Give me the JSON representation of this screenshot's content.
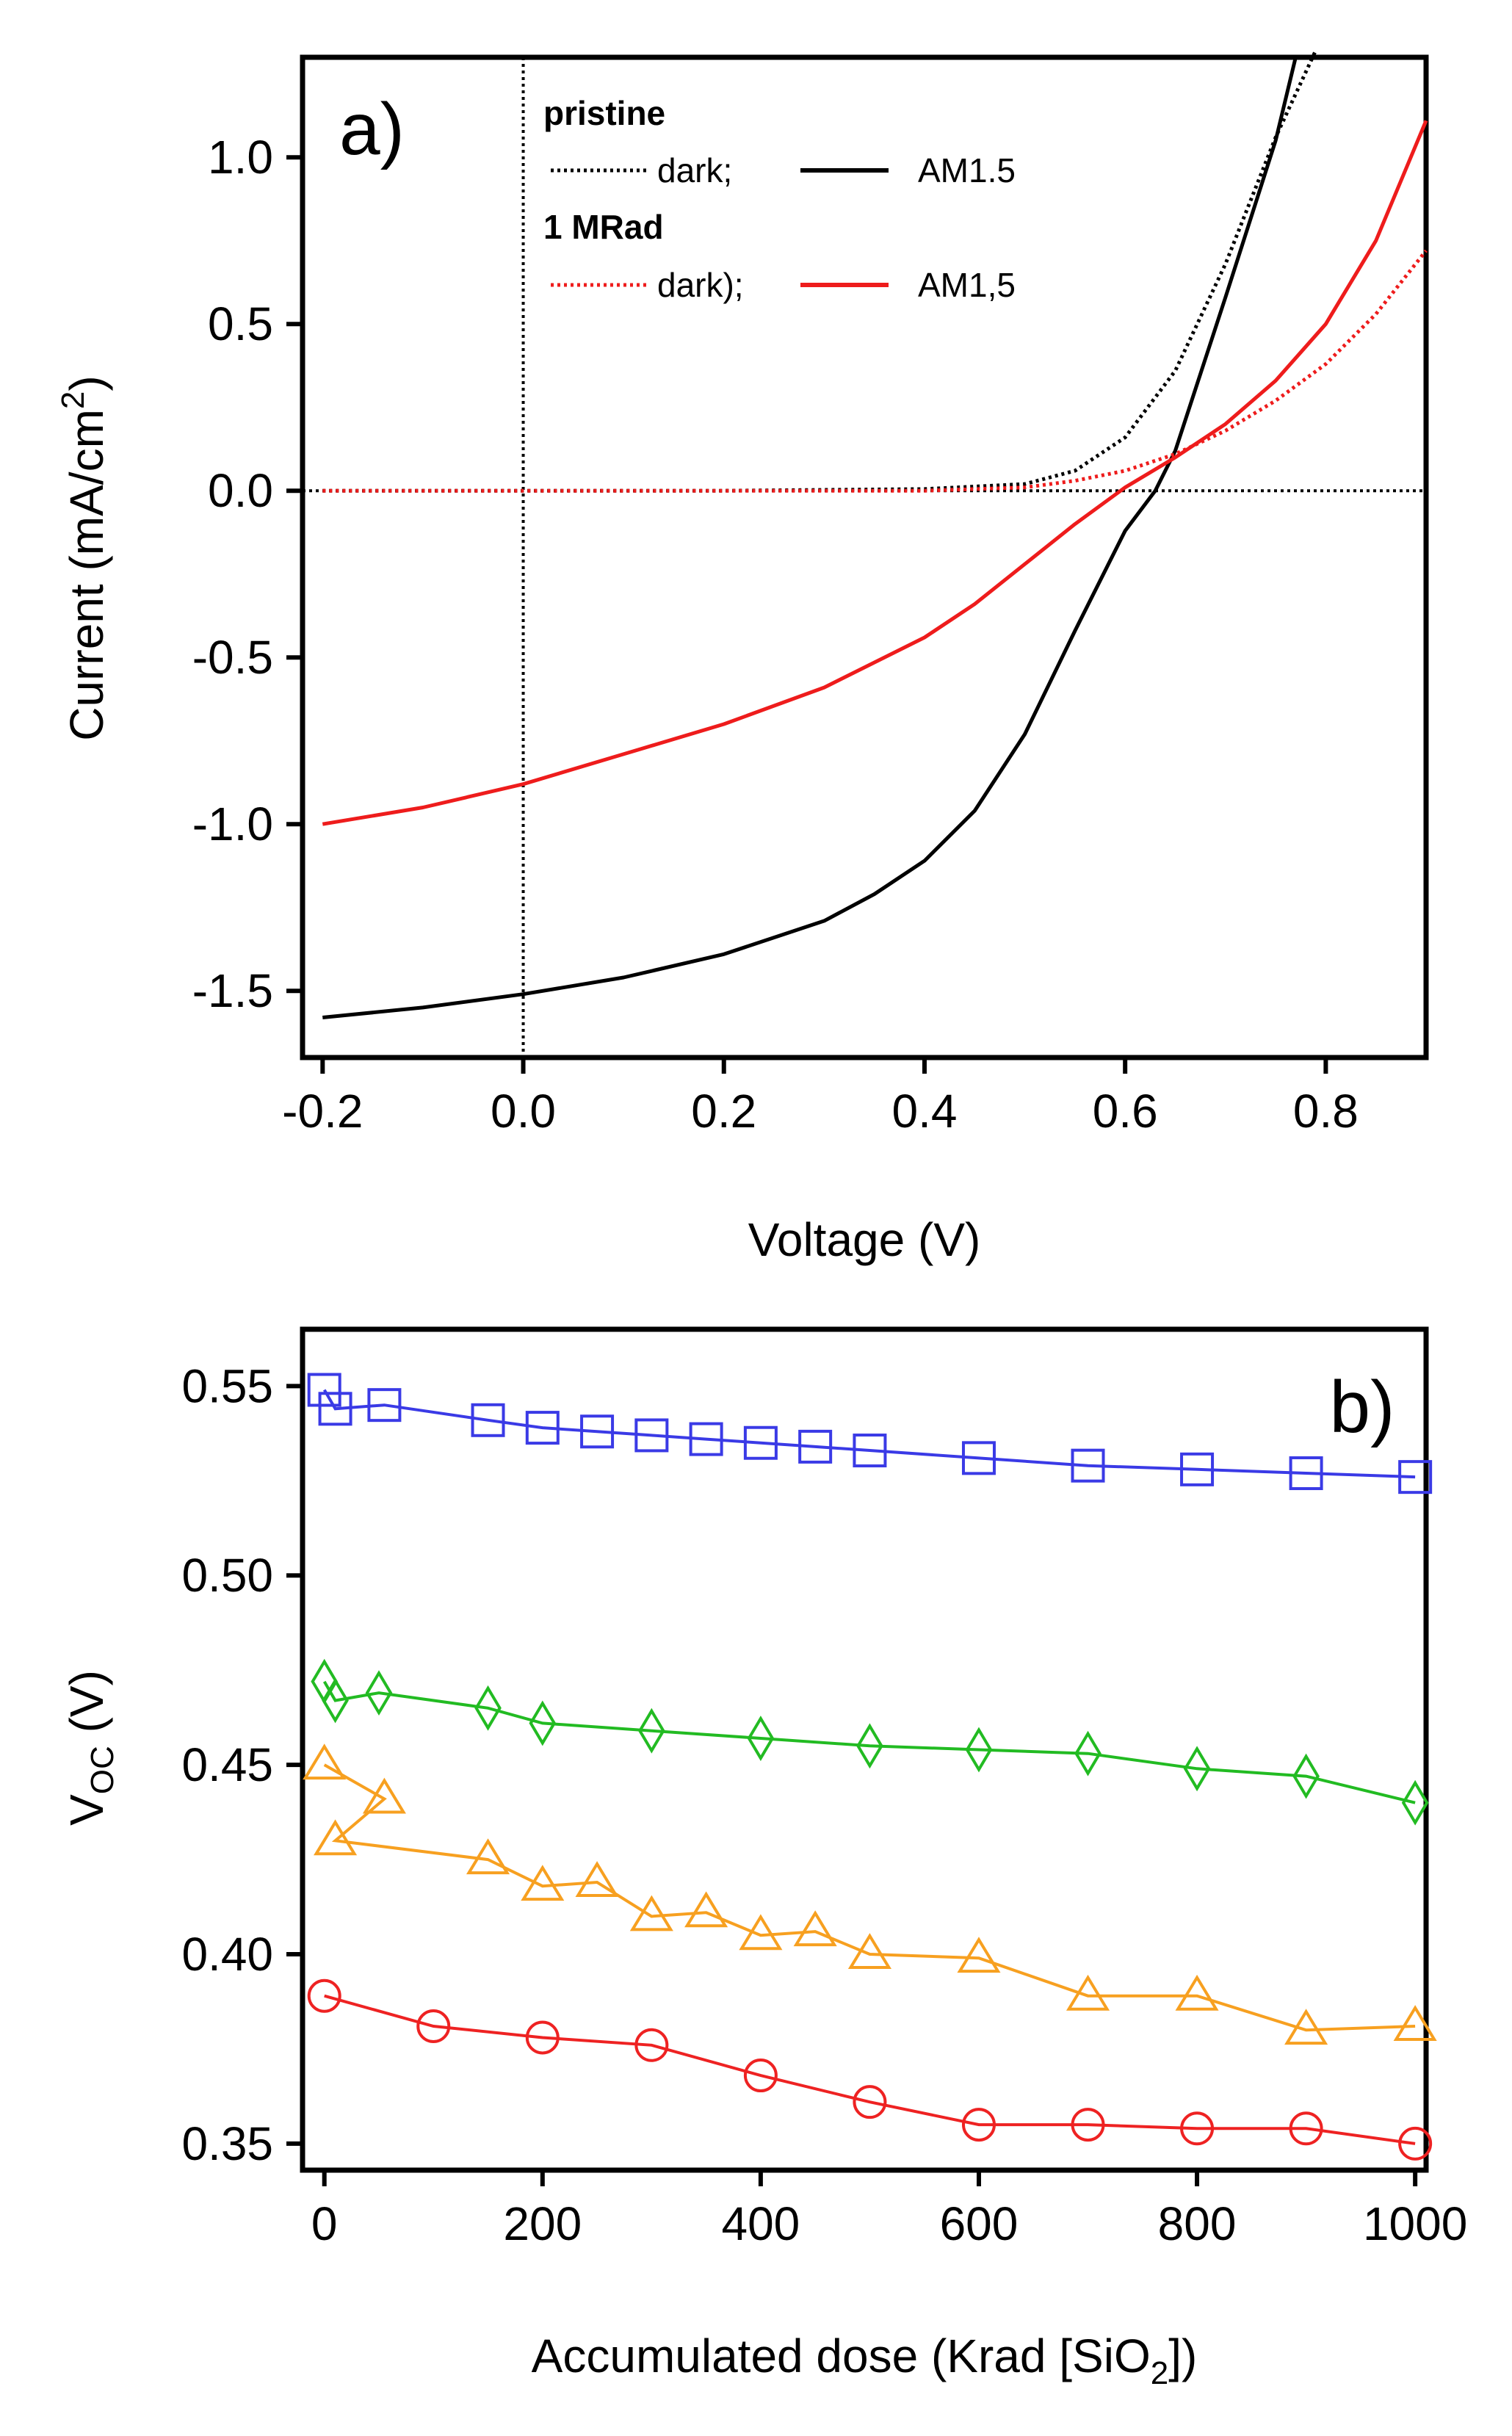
{
  "chart_data": [
    {
      "panel": "a)",
      "type": "line",
      "xlabel": "Voltage (V)",
      "ylabel_parts": [
        "Current (mA/cm",
        "2",
        ")"
      ],
      "xlim": [
        -0.22,
        0.9
      ],
      "ylim": [
        -1.7,
        1.3
      ],
      "xticks": [
        -0.2,
        0.0,
        0.2,
        0.4,
        0.6,
        0.8
      ],
      "xtick_labels": [
        "-0.2",
        "0.0",
        "0.2",
        "0.4",
        "0.6",
        "0.8"
      ],
      "yticks": [
        -1.5,
        -1.0,
        -0.5,
        0.0,
        0.5,
        1.0
      ],
      "ytick_labels": [
        "-1.5",
        "-1.0",
        "-0.5",
        "0.0",
        "0.5",
        "1.0"
      ],
      "reference_lines": {
        "x": 0.0,
        "y": 0.0
      },
      "legend": {
        "position": "top-center",
        "groups": [
          {
            "title": "pristine",
            "dark_label": "dark;",
            "light_label": "AM1.5",
            "color": "#000000"
          },
          {
            "title": "1 MRad",
            "dark_label": "dark);",
            "light_label": "AM1,5",
            "color": "#ee1c1c"
          }
        ]
      },
      "series": [
        {
          "name": "pristine dark",
          "color": "#000000",
          "style": "dotted",
          "x": [
            -0.2,
            0.0,
            0.2,
            0.4,
            0.5,
            0.55,
            0.6,
            0.65,
            0.7,
            0.75,
            0.79
          ],
          "y": [
            0.0,
            0.0,
            0.0,
            0.005,
            0.02,
            0.06,
            0.16,
            0.36,
            0.68,
            1.06,
            1.32
          ]
        },
        {
          "name": "pristine AM1.5",
          "color": "#000000",
          "style": "solid",
          "x": [
            -0.2,
            -0.1,
            0.0,
            0.1,
            0.2,
            0.3,
            0.35,
            0.4,
            0.45,
            0.5,
            0.55,
            0.6,
            0.63,
            0.65,
            0.7,
            0.75,
            0.77
          ],
          "y": [
            -1.58,
            -1.55,
            -1.51,
            -1.46,
            -1.39,
            -1.29,
            -1.21,
            -1.11,
            -0.96,
            -0.73,
            -0.42,
            -0.12,
            0.0,
            0.12,
            0.58,
            1.05,
            1.3
          ]
        },
        {
          "name": "1 MRad dark",
          "color": "#ee1c1c",
          "style": "dotted",
          "x": [
            -0.2,
            0.0,
            0.2,
            0.4,
            0.5,
            0.55,
            0.6,
            0.65,
            0.7,
            0.75,
            0.8,
            0.85,
            0.9
          ],
          "y": [
            0.0,
            0.0,
            0.0,
            0.0,
            0.01,
            0.03,
            0.06,
            0.11,
            0.18,
            0.27,
            0.38,
            0.53,
            0.72
          ]
        },
        {
          "name": "1 MRad AM1,5",
          "color": "#ee1c1c",
          "style": "solid",
          "x": [
            -0.2,
            -0.1,
            0.0,
            0.1,
            0.2,
            0.3,
            0.4,
            0.45,
            0.5,
            0.55,
            0.6,
            0.65,
            0.7,
            0.75,
            0.8,
            0.85,
            0.9
          ],
          "y": [
            -1.0,
            -0.95,
            -0.88,
            -0.79,
            -0.7,
            -0.59,
            -0.44,
            -0.34,
            -0.22,
            -0.1,
            0.01,
            0.1,
            0.2,
            0.33,
            0.5,
            0.75,
            1.11
          ]
        }
      ]
    },
    {
      "panel": "b)",
      "type": "line",
      "xlabel_parts": [
        "Accumulated dose (Krad [SiO",
        "2",
        "])"
      ],
      "ylabel_parts": [
        "V",
        "OC",
        " (V)"
      ],
      "xlim": [
        -20,
        1010
      ],
      "ylim": [
        0.343,
        0.565
      ],
      "xticks": [
        0,
        200,
        400,
        600,
        800,
        1000
      ],
      "xtick_labels": [
        "0",
        "200",
        "400",
        "600",
        "800",
        "1000"
      ],
      "yticks": [
        0.35,
        0.4,
        0.45,
        0.5,
        0.55
      ],
      "ytick_labels": [
        "0.35",
        "0.40",
        "0.45",
        "0.50",
        "0.55"
      ],
      "series": [
        {
          "name": "squares",
          "color": "#3a3ae6",
          "marker": "square",
          "x": [
            0,
            10,
            55,
            150,
            200,
            250,
            300,
            350,
            400,
            450,
            500,
            600,
            700,
            800,
            900,
            1000
          ],
          "y": [
            0.549,
            0.544,
            0.545,
            0.541,
            0.539,
            0.538,
            0.537,
            0.536,
            0.535,
            0.534,
            0.533,
            0.531,
            0.529,
            0.528,
            0.527,
            0.526
          ]
        },
        {
          "name": "diamonds",
          "color": "#22bb22",
          "marker": "diamond",
          "x": [
            0,
            10,
            50,
            150,
            200,
            300,
            400,
            500,
            600,
            700,
            800,
            900,
            1000
          ],
          "y": [
            0.472,
            0.467,
            0.469,
            0.465,
            0.461,
            0.459,
            0.457,
            0.455,
            0.454,
            0.453,
            0.449,
            0.447,
            0.44
          ]
        },
        {
          "name": "triangles",
          "color": "#f7a020",
          "marker": "triangle",
          "x": [
            0,
            55,
            10,
            150,
            200,
            250,
            300,
            350,
            400,
            450,
            500,
            600,
            700,
            800,
            900,
            1000
          ],
          "y": [
            0.45,
            0.441,
            0.43,
            0.425,
            0.418,
            0.419,
            0.41,
            0.411,
            0.405,
            0.406,
            0.4,
            0.399,
            0.389,
            0.389,
            0.38,
            0.381
          ]
        },
        {
          "name": "circles",
          "color": "#ee2222",
          "marker": "circle",
          "x": [
            0,
            100,
            200,
            300,
            400,
            500,
            600,
            700,
            800,
            900,
            1000
          ],
          "y": [
            0.389,
            0.381,
            0.378,
            0.376,
            0.368,
            0.361,
            0.355,
            0.355,
            0.354,
            0.354,
            0.35
          ]
        }
      ]
    }
  ]
}
